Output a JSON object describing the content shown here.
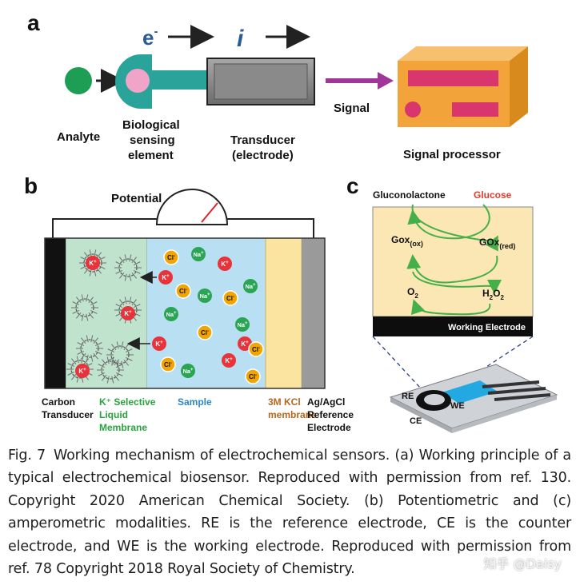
{
  "panel_a": {
    "label": "a",
    "electron": "e",
    "electron_sup": "-",
    "current": "i",
    "analyte": "Analyte",
    "biological": [
      "Biological",
      "sensing",
      "element"
    ],
    "transducer": [
      "Transducer",
      "(electrode)"
    ],
    "signal": "Signal",
    "processor": "Signal processor"
  },
  "panel_b": {
    "label": "b",
    "potential": "Potential",
    "ion_k": "K",
    "ion_na": "Na",
    "ion_cl": "Cl",
    "ion_plus": "+",
    "ion_minus": "-",
    "carbon": [
      "Carbon",
      "Transducer"
    ],
    "selective": [
      "K⁺ Selective",
      "Liquid",
      "Membrane"
    ],
    "sample": "Sample",
    "kcl": [
      "3M KCl",
      "membrane"
    ],
    "reference": [
      "Ag/AgCl",
      "Reference",
      "Electrode"
    ]
  },
  "panel_c": {
    "label": "c",
    "gluconolactone": "Gluconolactone",
    "glucose": "Glucose",
    "gox": "Gox",
    "gox_ox": "(ox)",
    "gox_red_main": "GOx",
    "gox_red": "(red)",
    "o": "O",
    "o_sub": "2",
    "h": "H",
    "h_sub": "2",
    "working": "Working Electrode",
    "re": "RE",
    "ce": "CE",
    "we": "WE"
  },
  "caption": {
    "fig_label": "Fig. 7",
    "text": "Working mechanism of electrochemical sensors. (a) Working principle of a typical electrochemical biosensor. Reproduced with permission from ref. 130. Copyright 2020 American Chemical Society. (b) Potentiometric and (c) amperometric modalities. RE is the reference electrode, CE is the counter electrode, and WE is the working electrode. Reproduced with permission from ref. 78 Copyright 2018 Royal Society of Chemistry."
  },
  "watermark": "知乎 @Daisy",
  "colors": {
    "analyte": "#1e9e54",
    "receptor": "#2aa39a",
    "receptor_pink": "#f0a5c8",
    "transducer": "#8a8a8a",
    "signal_arrow": "#a0359a",
    "processor": "#f2a33a",
    "processor_bar": "#d8366c",
    "membrane_green": "#bfe3cc",
    "sample_blue": "#b9e0f2",
    "kcl_yellow": "#fbe3a0",
    "ref_gray": "#9a9a9a",
    "ion_red": "#e8333b",
    "ion_green": "#2aa553",
    "ion_orange": "#f2a500",
    "panel_c_bg": "#fbe7b3",
    "cycle_green": "#45b04a",
    "label_green": "#27a33d",
    "label_blue": "#2a87c8",
    "label_brown": "#b8661c",
    "glucose_red": "#e23b2e"
  }
}
